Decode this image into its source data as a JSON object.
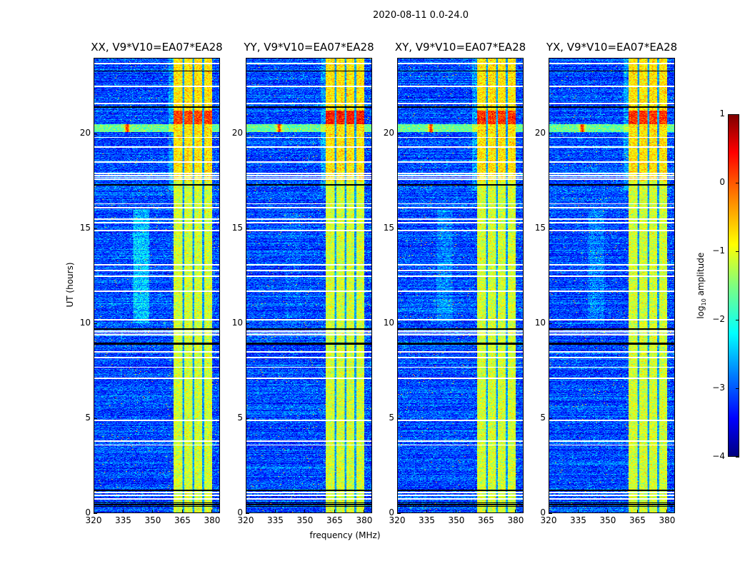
{
  "suptitle": "2020-08-11 0.0-24.0",
  "xlabel": "frequency (MHz)",
  "ylabel": "UT (hours)",
  "colorbar": {
    "label_prefix": "log",
    "label_sub": "10",
    "label_suffix": " amplitude",
    "ticks": [
      "1",
      "0",
      "−1",
      "−2",
      "−3",
      "−4"
    ],
    "tick_values": [
      1,
      0,
      -1,
      -2,
      -3,
      -4
    ],
    "range": [
      -4,
      1
    ],
    "colormap": "jet"
  },
  "chart_data": {
    "type": "heatmap",
    "title": "2020-08-11 0.0-24.0",
    "xlabel": "frequency (MHz)",
    "ylabel": "UT (hours)",
    "xlim": [
      320,
      384
    ],
    "ylim": [
      0,
      24
    ],
    "xticks": [
      "320",
      "335",
      "350",
      "365",
      "380"
    ],
    "xtick_values": [
      320,
      335,
      350,
      365,
      380
    ],
    "yticks": [
      "0",
      "5",
      "10",
      "15",
      "20"
    ],
    "ytick_values": [
      0,
      5,
      10,
      15,
      20
    ],
    "value_label": "log10 amplitude",
    "value_range": [
      -4,
      1
    ],
    "panels": [
      {
        "title": "XX, V9*V10=EA07*EA28",
        "band_boost": 1.0,
        "feature_boost": 0.6
      },
      {
        "title": "YY, V9*V10=EA07*EA28",
        "band_boost": 1.3,
        "feature_boost": 0.1
      },
      {
        "title": "XY, V9*V10=EA07*EA28",
        "band_boost": 1.1,
        "feature_boost": 0.3
      },
      {
        "title": "YX, V9*V10=EA07*EA28",
        "band_boost": 1.1,
        "feature_boost": 0.3
      }
    ],
    "background_level": -3.0,
    "rfi_band": {
      "freq_range_mhz": [
        360.5,
        380
      ],
      "level": -1.1,
      "channel_gaps_mhz": [
        365.5,
        370.5,
        375.5
      ]
    },
    "rfi_burst": {
      "time_range_h": [
        20.1,
        20.5
      ],
      "level": -1.6,
      "peak_freq_mhz": 337,
      "peak_level": 0.2
    },
    "flagged_times_h": [
      0.75,
      0.95,
      1.1,
      3.6,
      3.8,
      4.9,
      7.1,
      7.7,
      8.2,
      8.5,
      9.4,
      9.5,
      9.6,
      10.2,
      11.7,
      12.5,
      12.8,
      13.1,
      14.9,
      15.3,
      15.5,
      16.1,
      16.3,
      17.6,
      17.7,
      17.8,
      17.9,
      18.5,
      19.3,
      19.8,
      21.6,
      22.5,
      23.7
    ],
    "dark_times_h": [
      0.35,
      0.45,
      0.55,
      1.2,
      8.9,
      8.95,
      9.7,
      17.3,
      21.4,
      23.3
    ]
  }
}
